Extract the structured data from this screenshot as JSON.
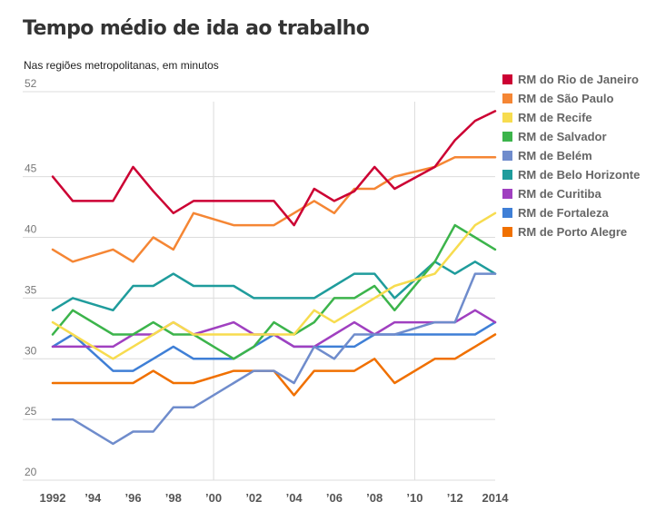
{
  "chart_data": {
    "type": "line",
    "title": "Tempo médio de ida ao trabalho",
    "subtitle": "Nas regiões metropolitanas, em minutos",
    "xlabel": "",
    "ylabel": "",
    "ylim": [
      20,
      52
    ],
    "y_ticks": [
      20,
      25,
      30,
      35,
      40,
      45,
      52
    ],
    "xlim": [
      1992,
      2014
    ],
    "x_ticks": [
      {
        "value": 1992,
        "label": "1992"
      },
      {
        "value": 1994,
        "label": "’94"
      },
      {
        "value": 1996,
        "label": "’96"
      },
      {
        "value": 1998,
        "label": "’98"
      },
      {
        "value": 2000,
        "label": "’00"
      },
      {
        "value": 2002,
        "label": "’02"
      },
      {
        "value": 2004,
        "label": "’04"
      },
      {
        "value": 2006,
        "label": "’06"
      },
      {
        "value": 2008,
        "label": "’08"
      },
      {
        "value": 2010,
        "label": "’10"
      },
      {
        "value": 2012,
        "label": "’12"
      },
      {
        "value": 2014,
        "label": "2014"
      }
    ],
    "x_gridlines": [
      2000,
      2010
    ],
    "legend_position": "right",
    "x": [
      1992,
      1993,
      1995,
      1996,
      1997,
      1998,
      1999,
      2001,
      2002,
      2003,
      2004,
      2005,
      2006,
      2007,
      2008,
      2009,
      2011,
      2012,
      2013,
      2014
    ],
    "series": [
      {
        "name": "RM do Rio de Janeiro",
        "color": "#cc0033",
        "values": [
          45,
          43,
          43,
          45.8,
          43.8,
          42,
          43,
          43,
          43,
          43,
          41,
          44,
          43,
          43.8,
          45.8,
          44,
          45.8,
          48,
          49.6,
          50.4
        ]
      },
      {
        "name": "RM de São Paulo",
        "color": "#f58634",
        "values": [
          39,
          38,
          39,
          38,
          40,
          39,
          42,
          41,
          41,
          41,
          42,
          43,
          42,
          44,
          44,
          45,
          45.8,
          46.6,
          46.6,
          46.6
        ]
      },
      {
        "name": "RM de Recife",
        "color": "#f7dc4f",
        "values": [
          33,
          32,
          30,
          31,
          32,
          33,
          32,
          32,
          32,
          32,
          32,
          34,
          33,
          34,
          35,
          36,
          37,
          39,
          41,
          42
        ]
      },
      {
        "name": "RM de Salvador",
        "color": "#3cb44b",
        "values": [
          32,
          34,
          32,
          32,
          33,
          32,
          32,
          30,
          31,
          33,
          32,
          33,
          35,
          35,
          36,
          34,
          38,
          41,
          40,
          39
        ]
      },
      {
        "name": "RM de Belém",
        "color": "#6f8ccc",
        "values": [
          25,
          25,
          23,
          24,
          24,
          26,
          26,
          28,
          29,
          29,
          28,
          31,
          30,
          32,
          32,
          32,
          33,
          33,
          37,
          37
        ]
      },
      {
        "name": "RM de Belo Horizonte",
        "color": "#1f9c9c",
        "values": [
          34,
          35,
          34,
          36,
          36,
          37,
          36,
          36,
          35,
          35,
          35,
          35,
          36,
          37,
          37,
          35,
          38,
          37,
          38,
          37
        ]
      },
      {
        "name": "RM de Curitiba",
        "color": "#a040c0",
        "values": [
          31,
          31,
          31,
          32,
          32,
          33,
          32,
          33,
          32,
          32,
          31,
          31,
          32,
          33,
          32,
          33,
          33,
          33,
          34,
          33
        ]
      },
      {
        "name": "RM de Fortaleza",
        "color": "#3f7fd6",
        "values": [
          31,
          32,
          29,
          29,
          30,
          31,
          30,
          30,
          31,
          32,
          31,
          31,
          31,
          31,
          32,
          32,
          32,
          32,
          32,
          33
        ]
      },
      {
        "name": "RM de Porto Alegre",
        "color": "#f07000",
        "values": [
          28,
          28,
          28,
          28,
          29,
          28,
          28,
          29,
          29,
          29,
          27,
          29,
          29,
          29,
          30,
          28,
          30,
          30,
          31,
          32
        ]
      }
    ]
  }
}
